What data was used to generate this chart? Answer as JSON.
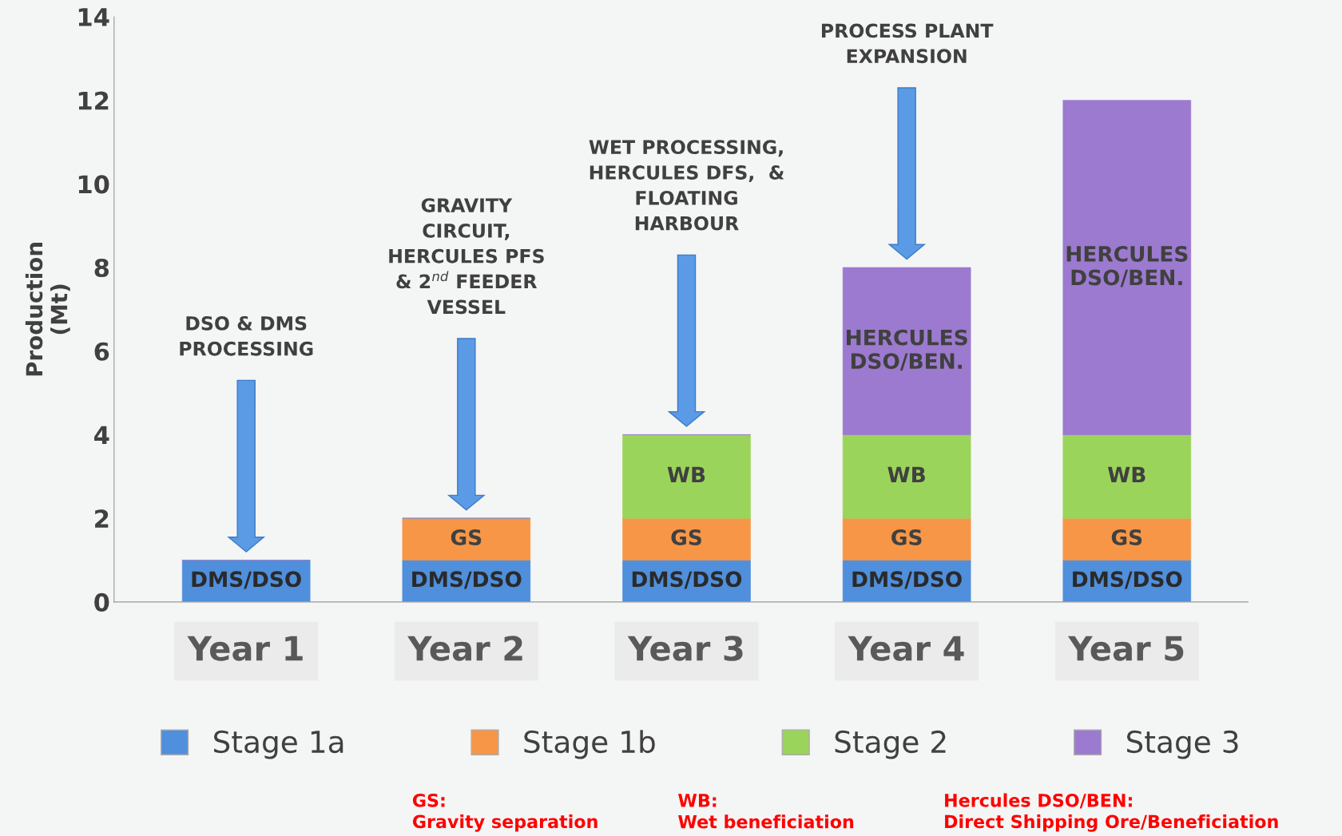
{
  "chart_data": {
    "type": "bar",
    "stacked": true,
    "ylabel": "Production\n(Mt)",
    "categories": [
      "Year 1",
      "Year 2",
      "Year 3",
      "Year 4",
      "Year 5"
    ],
    "series": [
      {
        "name": "Stage 1a",
        "color": "#4f8fdc",
        "values": [
          1,
          1,
          1,
          1,
          1
        ],
        "value_labels": [
          "DMS/DSO",
          "DMS/DSO",
          "DMS/DSO",
          "DMS/DSO",
          "DMS/DSO"
        ]
      },
      {
        "name": "Stage 1b",
        "color": "#f79646",
        "values": [
          0,
          1,
          1,
          1,
          1
        ],
        "value_labels": [
          null,
          "GS",
          "GS",
          "GS",
          "GS"
        ]
      },
      {
        "name": "Stage 2",
        "color": "#9bd45b",
        "values": [
          0,
          0,
          2,
          2,
          2
        ],
        "value_labels": [
          null,
          null,
          "WB",
          "WB",
          "WB"
        ]
      },
      {
        "name": "Stage 3",
        "color": "#9c7ad0",
        "values": [
          0,
          0,
          0,
          4,
          8
        ],
        "value_labels": [
          null,
          null,
          null,
          "HERCULES\nDSO/BEN.",
          "HERCULES\nDSO/BEN."
        ]
      }
    ],
    "ylim": [
      0,
      14
    ],
    "yticks": [
      0,
      2,
      4,
      6,
      8,
      10,
      12,
      14
    ],
    "grid": false,
    "legend": "bottom",
    "annotations": [
      "DSO & DMS\nPROCESSING",
      "GRAVITY\nCIRCUIT,\nHERCULES PFS\n& 2$^{nd}$ FEEDER\nVESSEL",
      "WET PROCESSING,\nHERCULES DFS,  &\nFLOATING\nHARBOUR",
      "PROCESS PLANT\nEXPANSION",
      "GS:\nGravity separation",
      "WB:\nWet beneficiation",
      "Hercules DSO/BEN:\nDirect Shipping Ore/Beneficiation"
    ]
  }
}
